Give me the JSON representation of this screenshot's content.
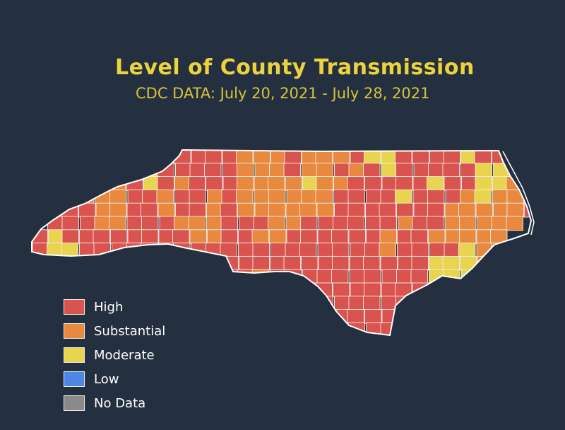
{
  "title": "Level of County Transmission",
  "subtitle": "CDC DATA: July 20, 2021 - July 28, 2021",
  "map": {
    "region": "North Carolina counties",
    "county_border_color": "#f3efe6"
  },
  "legend": [
    {
      "key": "high",
      "label": "High",
      "color": "#d9534f"
    },
    {
      "key": "substantial",
      "label": "Substantial",
      "color": "#e8893f"
    },
    {
      "key": "moderate",
      "label": "Moderate",
      "color": "#e9d44f"
    },
    {
      "key": "low",
      "label": "Low",
      "color": "#4f86e6"
    },
    {
      "key": "no_data",
      "label": "No Data",
      "color": "#8a8a8a"
    }
  ]
}
